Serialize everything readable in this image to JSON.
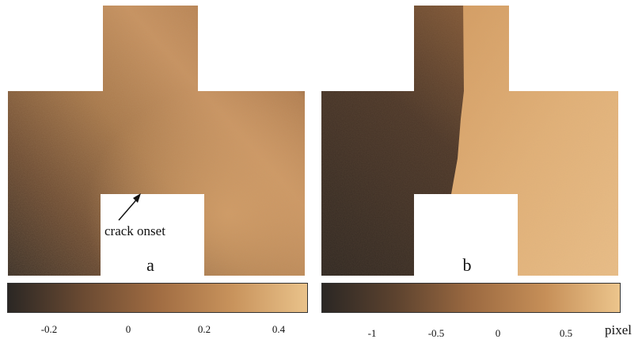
{
  "panels": [
    {
      "letter": "a",
      "annotation": "crack onset",
      "colorbar": {
        "ticks": [
          "-0.2",
          "0",
          "0.2",
          "0.4"
        ],
        "tick_values": [
          -0.2,
          0,
          0.2,
          0.4
        ],
        "range": [
          -0.32,
          0.48
        ],
        "colors": [
          "#2b2724",
          "#6a4a32",
          "#a06c42",
          "#c8935c",
          "#e9c28a"
        ]
      }
    },
    {
      "letter": "b",
      "colorbar": {
        "ticks": [
          "-1",
          "-0.5",
          "0",
          "0.5"
        ],
        "tick_values": [
          -1,
          -0.5,
          0,
          0.5
        ],
        "range": [
          -1.35,
          0.85
        ],
        "colors": [
          "#2b2724",
          "#5d432f",
          "#9c6a41",
          "#c68f58",
          "#ecc58c"
        ]
      },
      "unit": "pixel"
    }
  ],
  "colors": {
    "dark_brown": "#2e2722",
    "mid_brown": "#b07a4a",
    "light_tan": "#e4b57c",
    "white": "#ffffff"
  }
}
